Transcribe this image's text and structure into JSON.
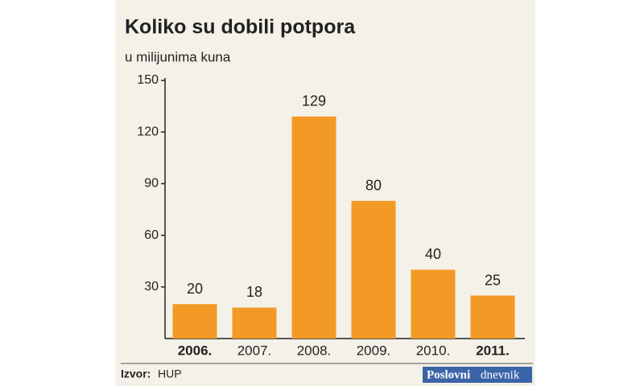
{
  "chart_data": {
    "type": "bar",
    "title": "Koliko su dobili potpora",
    "subtitle": "u milijunima kuna",
    "categories": [
      "2006.",
      "2007.",
      "2008.",
      "2009.",
      "2010.",
      "2011."
    ],
    "values": [
      20,
      18,
      129,
      80,
      40,
      25
    ],
    "color": "#f39a26",
    "highlighted_categories": [
      0,
      5
    ],
    "ylim": [
      0,
      150
    ],
    "yticks": [
      30,
      60,
      90,
      120,
      150
    ],
    "grid": false,
    "source_label": "Izvor:",
    "source": "HUP",
    "logo": [
      "Poslovni",
      "dnevnik"
    ]
  }
}
